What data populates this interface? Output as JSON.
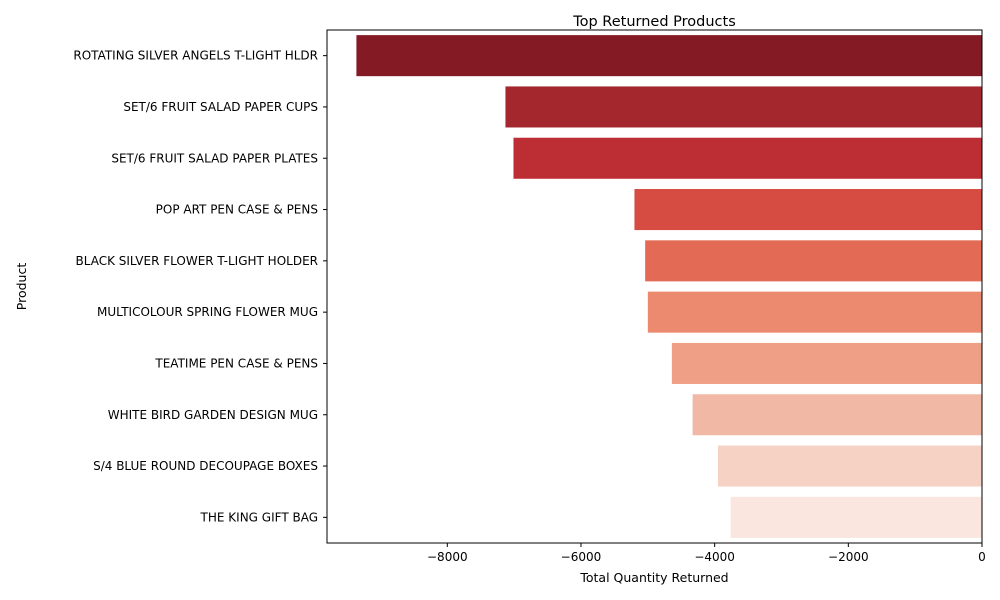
{
  "chart_data": {
    "type": "bar",
    "orientation": "horizontal",
    "title": "Top Returned Products",
    "xlabel": "Total Quantity Returned",
    "ylabel": "Product",
    "xlim": [
      -9800,
      0
    ],
    "xticks": [
      -8000,
      -6000,
      -4000,
      -2000,
      0
    ],
    "xtick_labels": [
      "−8000",
      "−6000",
      "−4000",
      "−2000",
      "0"
    ],
    "grid": false,
    "legend": "none",
    "categories": [
      "ROTATING SILVER ANGELS T-LIGHT HLDR",
      "SET/6 FRUIT SALAD PAPER CUPS",
      "SET/6 FRUIT SALAD  PAPER PLATES",
      "POP ART PEN CASE & PENS",
      "BLACK SILVER FLOWER T-LIGHT HOLDER",
      "MULTICOLOUR SPRING FLOWER MUG",
      "TEATIME PEN CASE & PENS",
      "WHITE BIRD GARDEN DESIGN MUG",
      "S/4 BLUE ROUND DECOUPAGE BOXES",
      "THE KING GIFT BAG"
    ],
    "values": [
      -9360,
      -7130,
      -7010,
      -5200,
      -5040,
      -5000,
      -4640,
      -4330,
      -3950,
      -3760
    ],
    "colors": [
      "#841b24",
      "#a3272d",
      "#bd2e34",
      "#d64b42",
      "#e36b55",
      "#eb8a6f",
      "#ee9f86",
      "#f1b9a5",
      "#f5d2c4",
      "#fae6de"
    ]
  }
}
